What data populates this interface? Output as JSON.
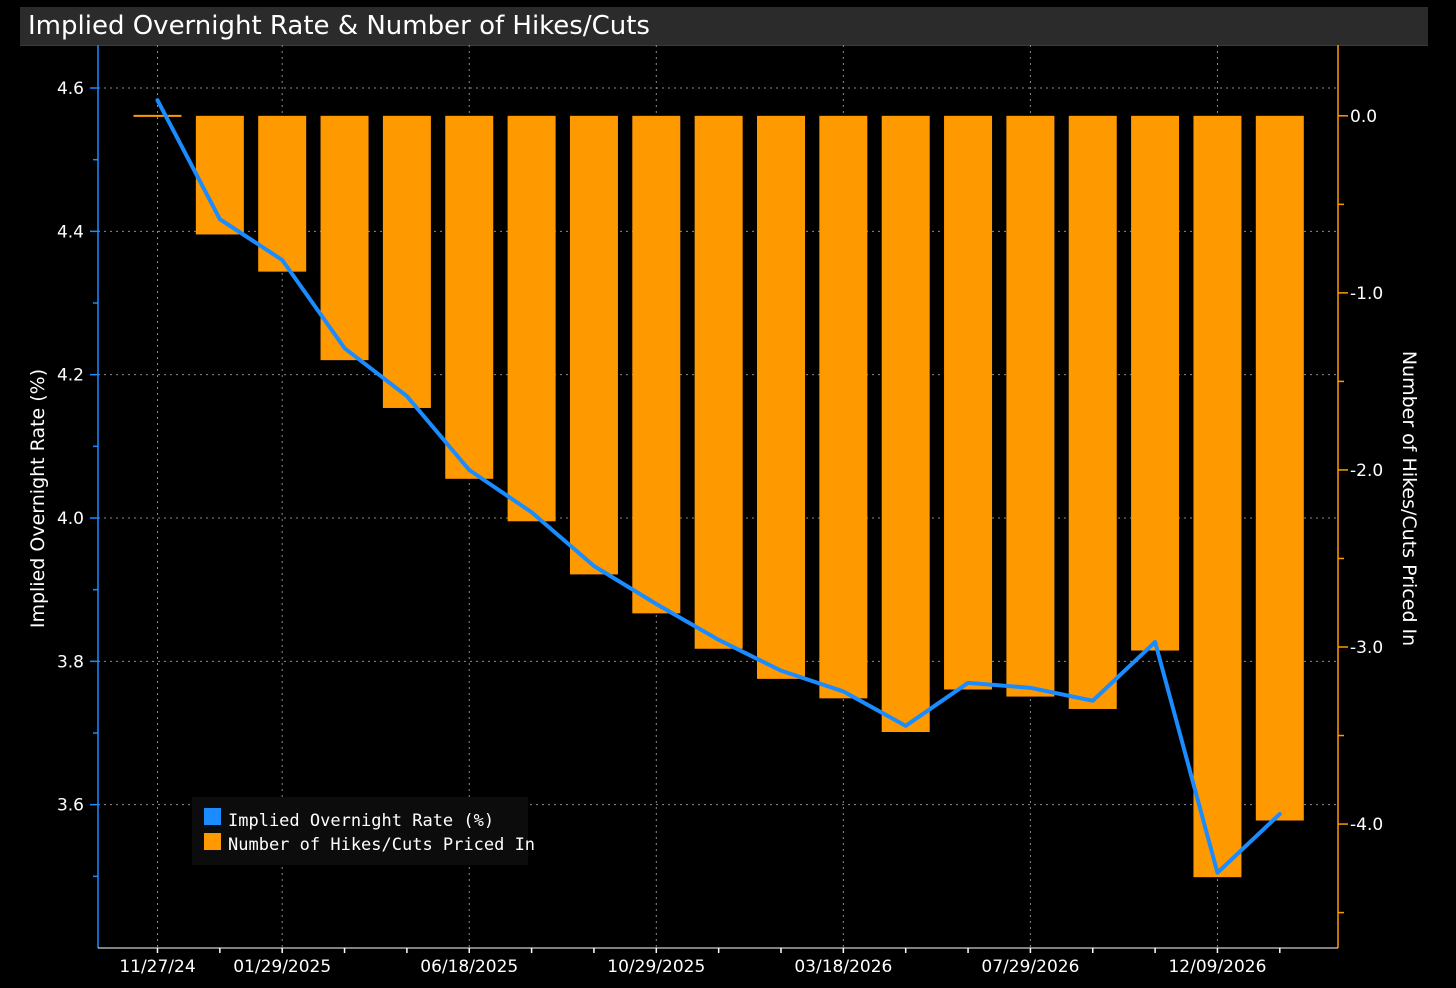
{
  "chart_data": {
    "type": "bar",
    "title": "Implied Overnight Rate & Number of Hikes/Cuts",
    "x_tick_labels": [
      "11/27/24",
      "01/29/2025",
      "06/18/2025",
      "10/29/2025",
      "03/18/2026",
      "07/29/2026",
      "12/09/2026"
    ],
    "left_axis": {
      "label": "Implied Overnight Rate (%)",
      "range": [
        3.4,
        4.66
      ],
      "ticks": [
        3.6,
        3.8,
        4.0,
        4.2,
        4.4,
        4.6
      ],
      "tick_labels": [
        "3.6",
        "3.8",
        "4.0",
        "4.2",
        "4.4",
        "4.6"
      ]
    },
    "right_axis": {
      "label": "Number of Hikes/Cuts Priced In",
      "range": [
        -4.7,
        0.4
      ],
      "ticks": [
        0,
        -1,
        -2,
        -3,
        -4
      ],
      "tick_labels": [
        "0.0",
        "-1.0",
        "-2.0",
        "-3.0",
        "-4.0"
      ]
    },
    "grid": true,
    "legend_position": "bottom-left",
    "series": [
      {
        "name": "Implied Overnight Rate (%)",
        "type": "line",
        "axis": "left",
        "color": "#1a8cff",
        "values": [
          4.583,
          4.417,
          4.36,
          4.237,
          4.17,
          4.067,
          4.008,
          3.933,
          3.88,
          3.83,
          3.787,
          3.758,
          3.71,
          3.77,
          3.763,
          3.745,
          3.827,
          3.505,
          3.587
        ]
      },
      {
        "name": "Number of Hikes/Cuts Priced In",
        "type": "bar",
        "axis": "right",
        "color": "#ff9900",
        "values": [
          0.0,
          -0.67,
          -0.88,
          -1.38,
          -1.65,
          -2.05,
          -2.29,
          -2.59,
          -2.81,
          -3.01,
          -3.18,
          -3.29,
          -3.48,
          -3.24,
          -3.28,
          -3.35,
          -3.02,
          -4.3,
          -3.98
        ]
      }
    ]
  }
}
